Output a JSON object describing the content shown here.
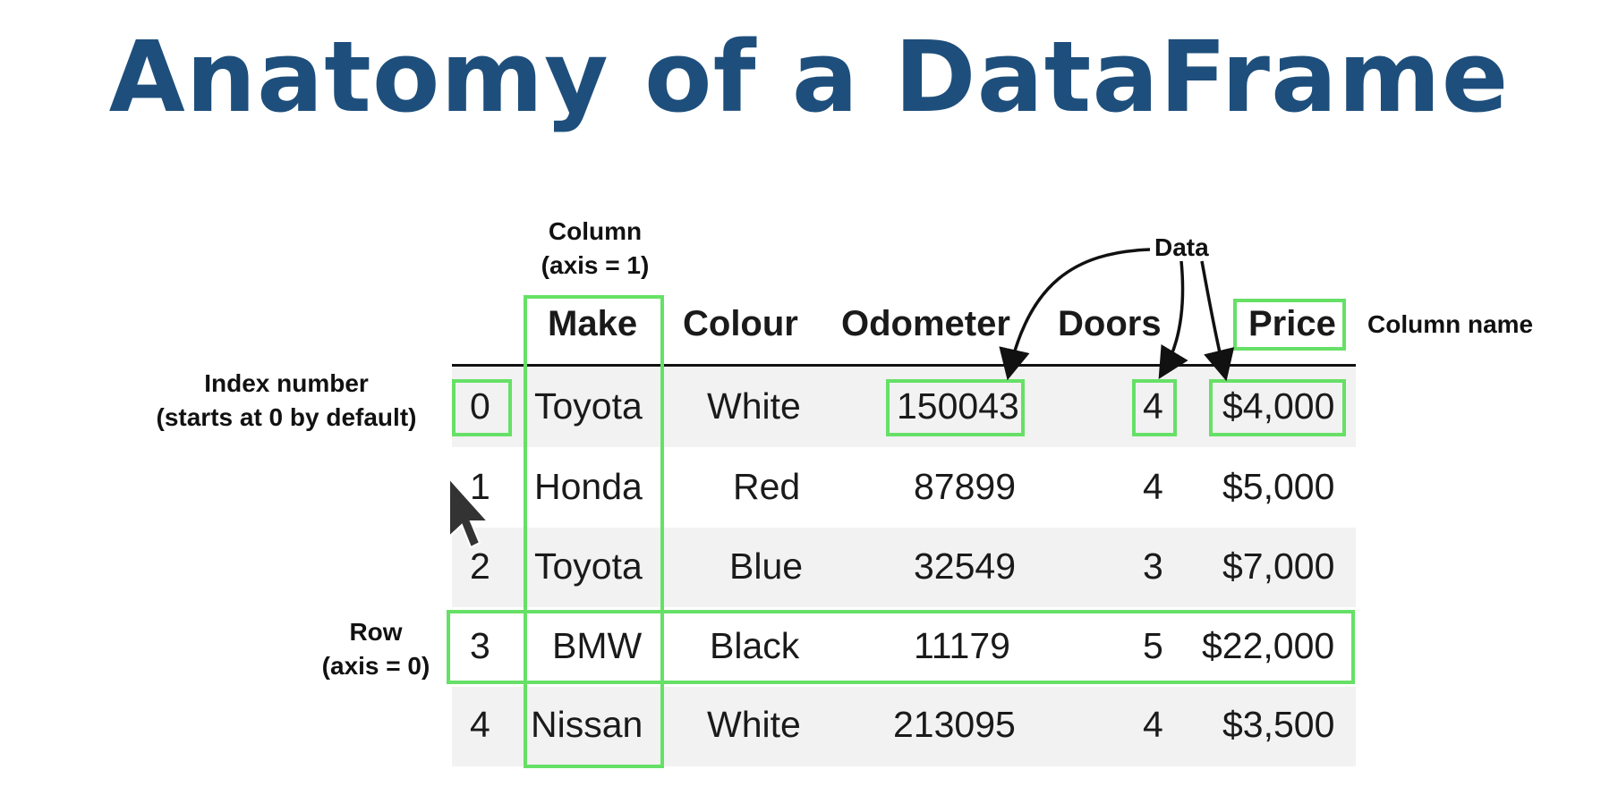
{
  "title": "Anatomy of a DataFrame",
  "annotations": {
    "column": [
      "Column",
      "(axis = 1)"
    ],
    "data": "Data",
    "column_name": "Column name",
    "index_number": [
      "Index number",
      "(starts at 0 by default)"
    ],
    "row": [
      "Row",
      "(axis = 0)"
    ]
  },
  "table": {
    "headers": [
      "",
      "Make",
      "Colour",
      "Odometer",
      "Doors",
      "Price"
    ],
    "rows": [
      [
        "0",
        "Toyota",
        "White",
        "150043",
        "4",
        "$4,000"
      ],
      [
        "1",
        "Honda",
        "Red",
        "87899",
        "4",
        "$5,000"
      ],
      [
        "2",
        "Toyota",
        "Blue",
        "32549",
        "3",
        "$7,000"
      ],
      [
        "3",
        "BMW",
        "Black",
        "11179",
        "5",
        "$22,000"
      ],
      [
        "4",
        "Nissan",
        "White",
        "213095",
        "4",
        "$3,500"
      ]
    ]
  },
  "colors": {
    "title": "#1e4f7c",
    "highlight_box": "#66e066",
    "row_band": "#f2f2f2"
  }
}
